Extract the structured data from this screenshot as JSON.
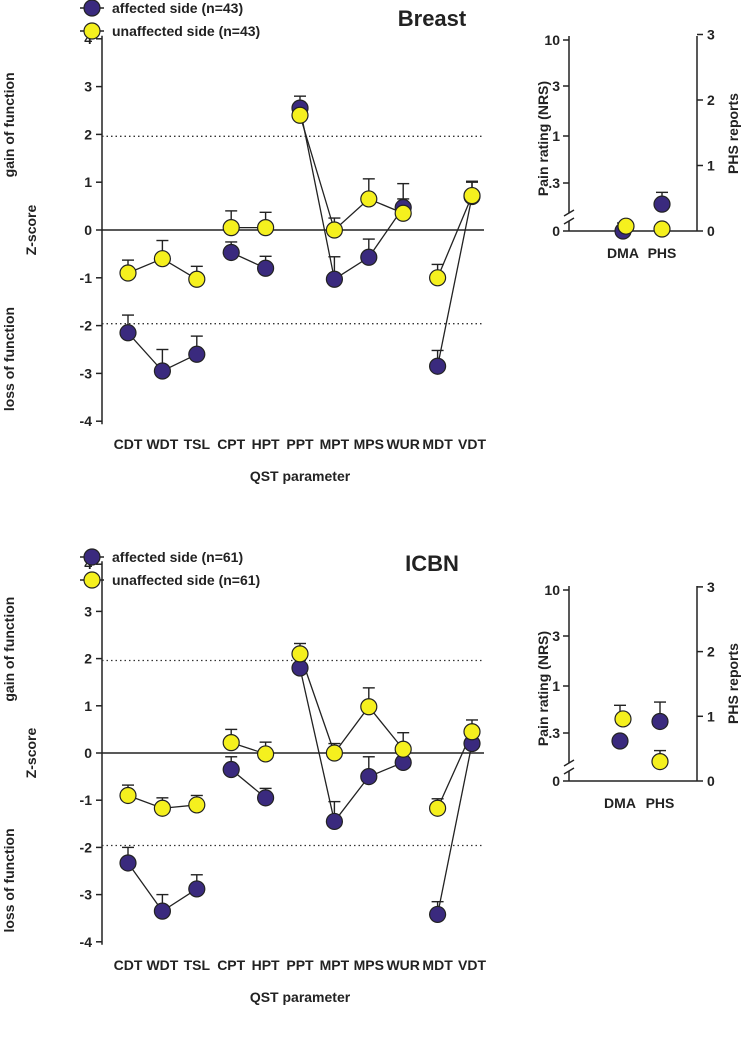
{
  "chart_data": [
    {
      "type": "line",
      "panel": "main",
      "title": "Breast",
      "xlabel": "QST parameter",
      "ylabel": "Z-score",
      "ylabel_upper": "gain of function",
      "ylabel_lower": "loss of function",
      "ylim": [
        -4,
        4
      ],
      "yticks": [
        4,
        3,
        2,
        1,
        0,
        -1,
        -2,
        -3,
        -4
      ],
      "reference_lines": [
        1.96,
        -1.96
      ],
      "categories": [
        "CDT",
        "WDT",
        "TSL",
        "CPT",
        "HPT",
        "PPT",
        "MPT",
        "MPS",
        "WUR",
        "MDT",
        "VDT"
      ],
      "series": [
        {
          "name": "affected side (n=43)",
          "color": "#3a2a7e",
          "values": [
            -2.15,
            -2.95,
            -2.6,
            -0.47,
            -0.8,
            2.55,
            -1.03,
            -0.57,
            0.47,
            -2.85,
            0.7
          ],
          "errors": [
            0.37,
            0.45,
            0.38,
            0.22,
            0.25,
            0.25,
            0.47,
            0.38,
            0.5,
            0.33,
            0.3
          ]
        },
        {
          "name": "unaffected side (n=43)",
          "color": "#f5f01e",
          "values": [
            -0.9,
            -0.6,
            -1.03,
            0.05,
            0.05,
            2.4,
            0.0,
            0.65,
            0.35,
            -1.0,
            0.72
          ],
          "errors": [
            0.27,
            0.38,
            0.27,
            0.35,
            0.32,
            0.27,
            0.25,
            0.42,
            0.3,
            0.28,
            0.3
          ]
        }
      ],
      "connections": [
        {
          "series": 0,
          "indices": [
            0,
            1,
            2
          ]
        },
        {
          "series": 1,
          "indices": [
            0,
            1,
            2
          ]
        },
        {
          "series": 0,
          "indices": [
            3,
            4
          ]
        },
        {
          "series": 1,
          "indices": [
            3,
            4
          ]
        },
        {
          "series": 0,
          "indices": [
            5,
            6,
            7,
            8
          ]
        },
        {
          "series": 1,
          "indices": [
            5,
            6,
            7,
            8
          ]
        },
        {
          "series": 0,
          "indices": [
            9,
            10
          ]
        },
        {
          "series": 1,
          "indices": [
            9,
            10
          ]
        }
      ]
    },
    {
      "type": "scatter",
      "panel": "inset",
      "title": "Breast",
      "ylabel_left": "Pain rating (NRS)",
      "ylabel_right": "PHS reports",
      "left_ticks": [
        "10",
        "3",
        "1",
        ".3",
        "0"
      ],
      "right_ticks": [
        "3",
        "2",
        "1",
        "0"
      ],
      "categories": [
        "DMA",
        "PHS"
      ],
      "series": [
        {
          "name": "affected side (n=43)",
          "color": "#3a2a7e",
          "values": [
            0.0,
            0.41
          ],
          "errors": [
            0.0,
            0.18
          ]
        },
        {
          "name": "unaffected side (n=43)",
          "color": "#f5f01e",
          "values": [
            0.03,
            0.03
          ],
          "errors": [
            0.02,
            0.02
          ]
        }
      ]
    },
    {
      "type": "line",
      "panel": "main",
      "title": "ICBN",
      "xlabel": "QST parameter",
      "ylabel": "Z-score",
      "ylabel_upper": "gain of function",
      "ylabel_lower": "loss of function",
      "ylim": [
        -4,
        4
      ],
      "yticks": [
        4,
        3,
        2,
        1,
        0,
        -1,
        -2,
        -3,
        -4
      ],
      "reference_lines": [
        1.96,
        -1.96
      ],
      "categories": [
        "CDT",
        "WDT",
        "TSL",
        "CPT",
        "HPT",
        "PPT",
        "MPT",
        "MPS",
        "WUR",
        "MDT",
        "VDT"
      ],
      "series": [
        {
          "name": "affected side (n=61)",
          "color": "#3a2a7e",
          "values": [
            -2.33,
            -3.35,
            -2.88,
            -0.35,
            -0.95,
            1.8,
            -1.45,
            -0.5,
            -0.2,
            -3.42,
            0.2
          ],
          "errors": [
            0.33,
            0.35,
            0.3,
            0.27,
            0.2,
            0.2,
            0.42,
            0.42,
            0.2,
            0.27,
            0.27
          ]
        },
        {
          "name": "unaffected side (n=61)",
          "color": "#f5f01e",
          "values": [
            -0.9,
            -1.17,
            -1.1,
            0.22,
            -0.02,
            2.1,
            0.0,
            0.98,
            0.08,
            -1.17,
            0.45
          ],
          "errors": [
            0.22,
            0.22,
            0.2,
            0.28,
            0.25,
            0.22,
            0.2,
            0.4,
            0.35,
            0.2,
            0.25
          ]
        }
      ],
      "connections": [
        {
          "series": 0,
          "indices": [
            0,
            1,
            2
          ]
        },
        {
          "series": 1,
          "indices": [
            0,
            1,
            2
          ]
        },
        {
          "series": 0,
          "indices": [
            3,
            4
          ]
        },
        {
          "series": 1,
          "indices": [
            3,
            4
          ]
        },
        {
          "series": 0,
          "indices": [
            5,
            6,
            7,
            8
          ]
        },
        {
          "series": 1,
          "indices": [
            5,
            6,
            7,
            8
          ]
        },
        {
          "series": 0,
          "indices": [
            9,
            10
          ]
        },
        {
          "series": 1,
          "indices": [
            9,
            10
          ]
        }
      ]
    },
    {
      "type": "scatter",
      "panel": "inset",
      "title": "ICBN",
      "ylabel_left": "Pain rating (NRS)",
      "ylabel_right": "PHS reports",
      "left_ticks": [
        "10",
        "3",
        "1",
        ".3",
        "0"
      ],
      "right_ticks": [
        "3",
        "2",
        "1",
        "0"
      ],
      "categories": [
        "DMA",
        "PHS"
      ],
      "series": [
        {
          "name": "affected side (n=61)",
          "color": "#3a2a7e",
          "values": [
            0.25,
            0.92
          ],
          "errors": [
            0.0,
            0.3
          ]
        },
        {
          "name": "unaffected side (n=61)",
          "color": "#f5f01e",
          "values": [
            0.43,
            0.3
          ],
          "errors": [
            0.18,
            0.17
          ]
        }
      ]
    }
  ]
}
